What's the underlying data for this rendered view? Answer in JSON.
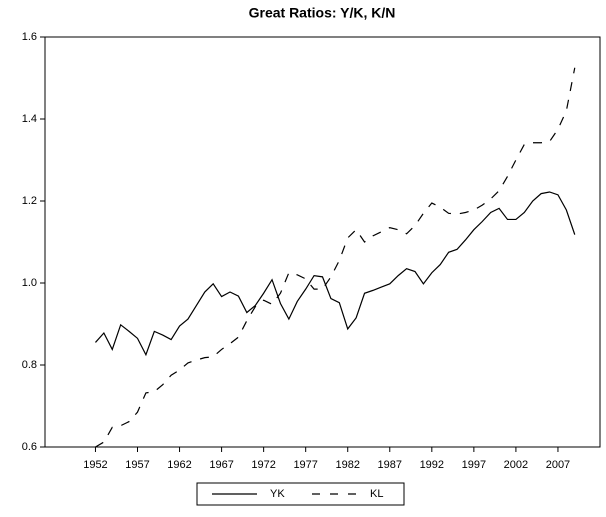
{
  "chart_data": {
    "type": "line",
    "title": "Great Ratios: Y/K, K/N",
    "x": [
      1952,
      1953,
      1954,
      1955,
      1956,
      1957,
      1958,
      1959,
      1960,
      1961,
      1962,
      1963,
      1964,
      1965,
      1966,
      1967,
      1968,
      1969,
      1970,
      1971,
      1972,
      1973,
      1974,
      1975,
      1976,
      1977,
      1978,
      1979,
      1980,
      1981,
      1982,
      1983,
      1984,
      1985,
      1986,
      1987,
      1988,
      1989,
      1990,
      1991,
      1992,
      1993,
      1994,
      1995,
      1996,
      1997,
      1998,
      1999,
      2000,
      2001,
      2002,
      2003,
      2004,
      2005,
      2006,
      2007,
      2008,
      2009
    ],
    "series": [
      {
        "name": "YK",
        "color": "#000000",
        "line_style": "solid",
        "values": [
          0.855,
          0.878,
          0.838,
          0.898,
          0.882,
          0.865,
          0.825,
          0.882,
          0.873,
          0.862,
          0.895,
          0.912,
          0.945,
          0.978,
          0.998,
          0.967,
          0.978,
          0.968,
          0.928,
          0.945,
          0.975,
          1.008,
          0.95,
          0.912,
          0.955,
          0.985,
          1.018,
          1.015,
          0.962,
          0.952,
          0.888,
          0.915,
          0.975,
          0.982,
          0.99,
          0.998,
          1.018,
          1.035,
          1.028,
          0.998,
          1.025,
          1.045,
          1.075,
          1.082,
          1.105,
          1.13,
          1.15,
          1.172,
          1.182,
          1.155,
          1.155,
          1.172,
          1.2,
          1.218,
          1.222,
          1.215,
          1.178,
          1.118
        ]
      },
      {
        "name": "KL",
        "color": "#000000",
        "line_style": "dashed",
        "values": [
          0.6,
          0.612,
          0.648,
          0.652,
          0.662,
          0.685,
          0.732,
          0.735,
          0.752,
          0.775,
          0.788,
          0.805,
          0.812,
          0.818,
          0.82,
          0.838,
          0.852,
          0.868,
          0.908,
          0.942,
          0.958,
          0.948,
          0.975,
          1.025,
          1.02,
          1.01,
          0.985,
          0.985,
          1.015,
          1.055,
          1.11,
          1.13,
          1.1,
          1.115,
          1.125,
          1.135,
          1.13,
          1.12,
          1.14,
          1.17,
          1.195,
          1.185,
          1.17,
          1.168,
          1.172,
          1.178,
          1.19,
          1.205,
          1.225,
          1.26,
          1.3,
          1.338,
          1.342,
          1.342,
          1.345,
          1.375,
          1.42,
          1.525
        ]
      }
    ],
    "xlim": [
      1946,
      2012
    ],
    "xticks": [
      1952,
      1957,
      1962,
      1967,
      1972,
      1977,
      1982,
      1987,
      1992,
      1997,
      2002,
      2007
    ],
    "ylim": [
      0.6,
      1.6
    ],
    "yticks": [
      0.6,
      0.8,
      {
        "value": 1,
        "label": "1.0"
      },
      1.2,
      1.4,
      1.6
    ],
    "legend": "bottom"
  }
}
